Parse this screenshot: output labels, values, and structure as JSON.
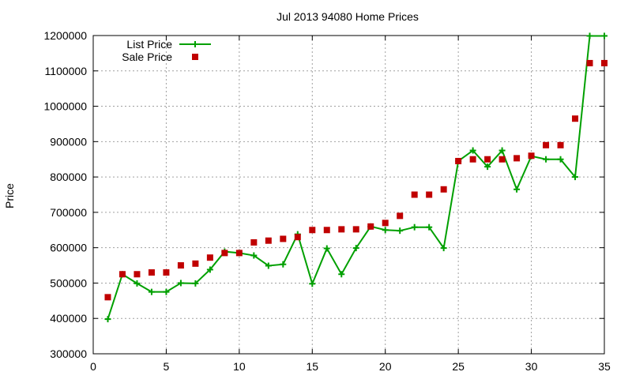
{
  "chart_data": {
    "type": "line",
    "title": "Jul 2013 94080 Home Prices",
    "xlabel": "",
    "ylabel": "Price",
    "xlim": [
      0,
      35
    ],
    "ylim": [
      300000,
      1200000
    ],
    "xticks": [
      0,
      5,
      10,
      15,
      20,
      25,
      30,
      35
    ],
    "yticks": [
      300000,
      400000,
      500000,
      600000,
      700000,
      800000,
      900000,
      1000000,
      1100000,
      1200000
    ],
    "grid": true,
    "legend": {
      "position": "top-left"
    },
    "series": [
      {
        "name": "List Price",
        "kind": "line-points",
        "marker": "plus",
        "color": "#00a000",
        "points": [
          [
            1,
            398000
          ],
          [
            2,
            525000
          ],
          [
            3,
            499000
          ],
          [
            4,
            475000
          ],
          [
            5,
            475000
          ],
          [
            6,
            500000
          ],
          [
            7,
            499000
          ],
          [
            8,
            538000
          ],
          [
            9,
            589000
          ],
          [
            10,
            585000
          ],
          [
            11,
            578000
          ],
          [
            12,
            549000
          ],
          [
            13,
            553000
          ],
          [
            14,
            638000
          ],
          [
            15,
            498000
          ],
          [
            16,
            598000
          ],
          [
            17,
            525000
          ],
          [
            18,
            599000
          ],
          [
            19,
            660000
          ],
          [
            20,
            650000
          ],
          [
            21,
            648000
          ],
          [
            22,
            658000
          ],
          [
            23,
            658000
          ],
          [
            24,
            599000
          ],
          [
            25,
            845000
          ],
          [
            26,
            875000
          ],
          [
            27,
            829000
          ],
          [
            28,
            875000
          ],
          [
            29,
            765000
          ],
          [
            30,
            859000
          ],
          [
            31,
            850000
          ],
          [
            32,
            850000
          ],
          [
            33,
            800000
          ],
          [
            34,
            1199000
          ],
          [
            35,
            1199000
          ]
        ]
      },
      {
        "name": "Sale Price",
        "kind": "points",
        "marker": "square",
        "color": "#c00000",
        "points": [
          [
            1,
            460000
          ],
          [
            2,
            525000
          ],
          [
            3,
            525000
          ],
          [
            4,
            530000
          ],
          [
            5,
            530000
          ],
          [
            6,
            550000
          ],
          [
            7,
            555000
          ],
          [
            8,
            572000
          ],
          [
            9,
            585000
          ],
          [
            10,
            585000
          ],
          [
            11,
            615000
          ],
          [
            12,
            620000
          ],
          [
            13,
            625000
          ],
          [
            14,
            630000
          ],
          [
            15,
            650000
          ],
          [
            16,
            650000
          ],
          [
            17,
            652000
          ],
          [
            18,
            652000
          ],
          [
            19,
            660000
          ],
          [
            20,
            670000
          ],
          [
            21,
            690000
          ],
          [
            22,
            750000
          ],
          [
            23,
            750000
          ],
          [
            24,
            765000
          ],
          [
            25,
            845000
          ],
          [
            26,
            850000
          ],
          [
            27,
            850000
          ],
          [
            28,
            850000
          ],
          [
            29,
            853000
          ],
          [
            30,
            860000
          ],
          [
            31,
            890000
          ],
          [
            32,
            890000
          ],
          [
            33,
            965000
          ],
          [
            34,
            1122000
          ],
          [
            35,
            1122000
          ]
        ]
      }
    ]
  }
}
